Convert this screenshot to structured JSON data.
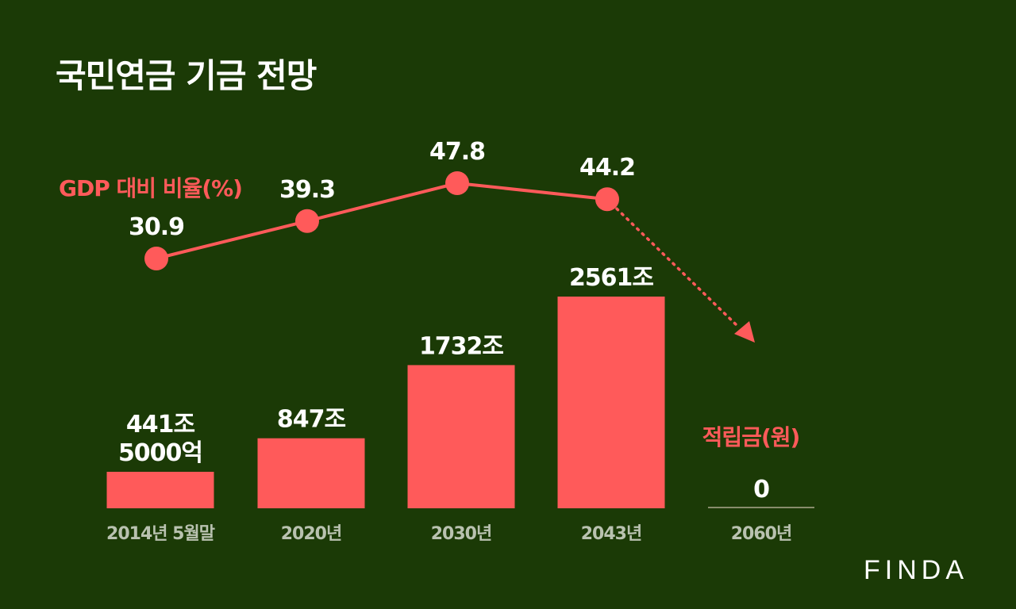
{
  "title": "국민연금 기금 전망",
  "brand": "FINDA",
  "colors": {
    "background": "#1b3a06",
    "accent": "#ff5a5a",
    "text": "#ffffff",
    "category_text": "#b9c2b0"
  },
  "chart_data": {
    "type": "bar",
    "categories": [
      "2014년 5월말",
      "2020년",
      "2030년",
      "2043년",
      "2060년"
    ],
    "bar_series": {
      "name": "적립금(원)",
      "values": [
        441.5,
        847,
        1732,
        2561,
        0
      ],
      "labels": [
        [
          "441조",
          "5000억"
        ],
        [
          "847조"
        ],
        [
          "1732조"
        ],
        [
          "2561조"
        ],
        [
          "0"
        ]
      ]
    },
    "line_series": {
      "name": "GDP 대비 비율(%)",
      "values": [
        30.9,
        39.3,
        47.8,
        44.2,
        null
      ],
      "labels": [
        "30.9",
        "39.3",
        "47.8",
        "44.2",
        ""
      ],
      "trend_after_last": "down"
    }
  }
}
